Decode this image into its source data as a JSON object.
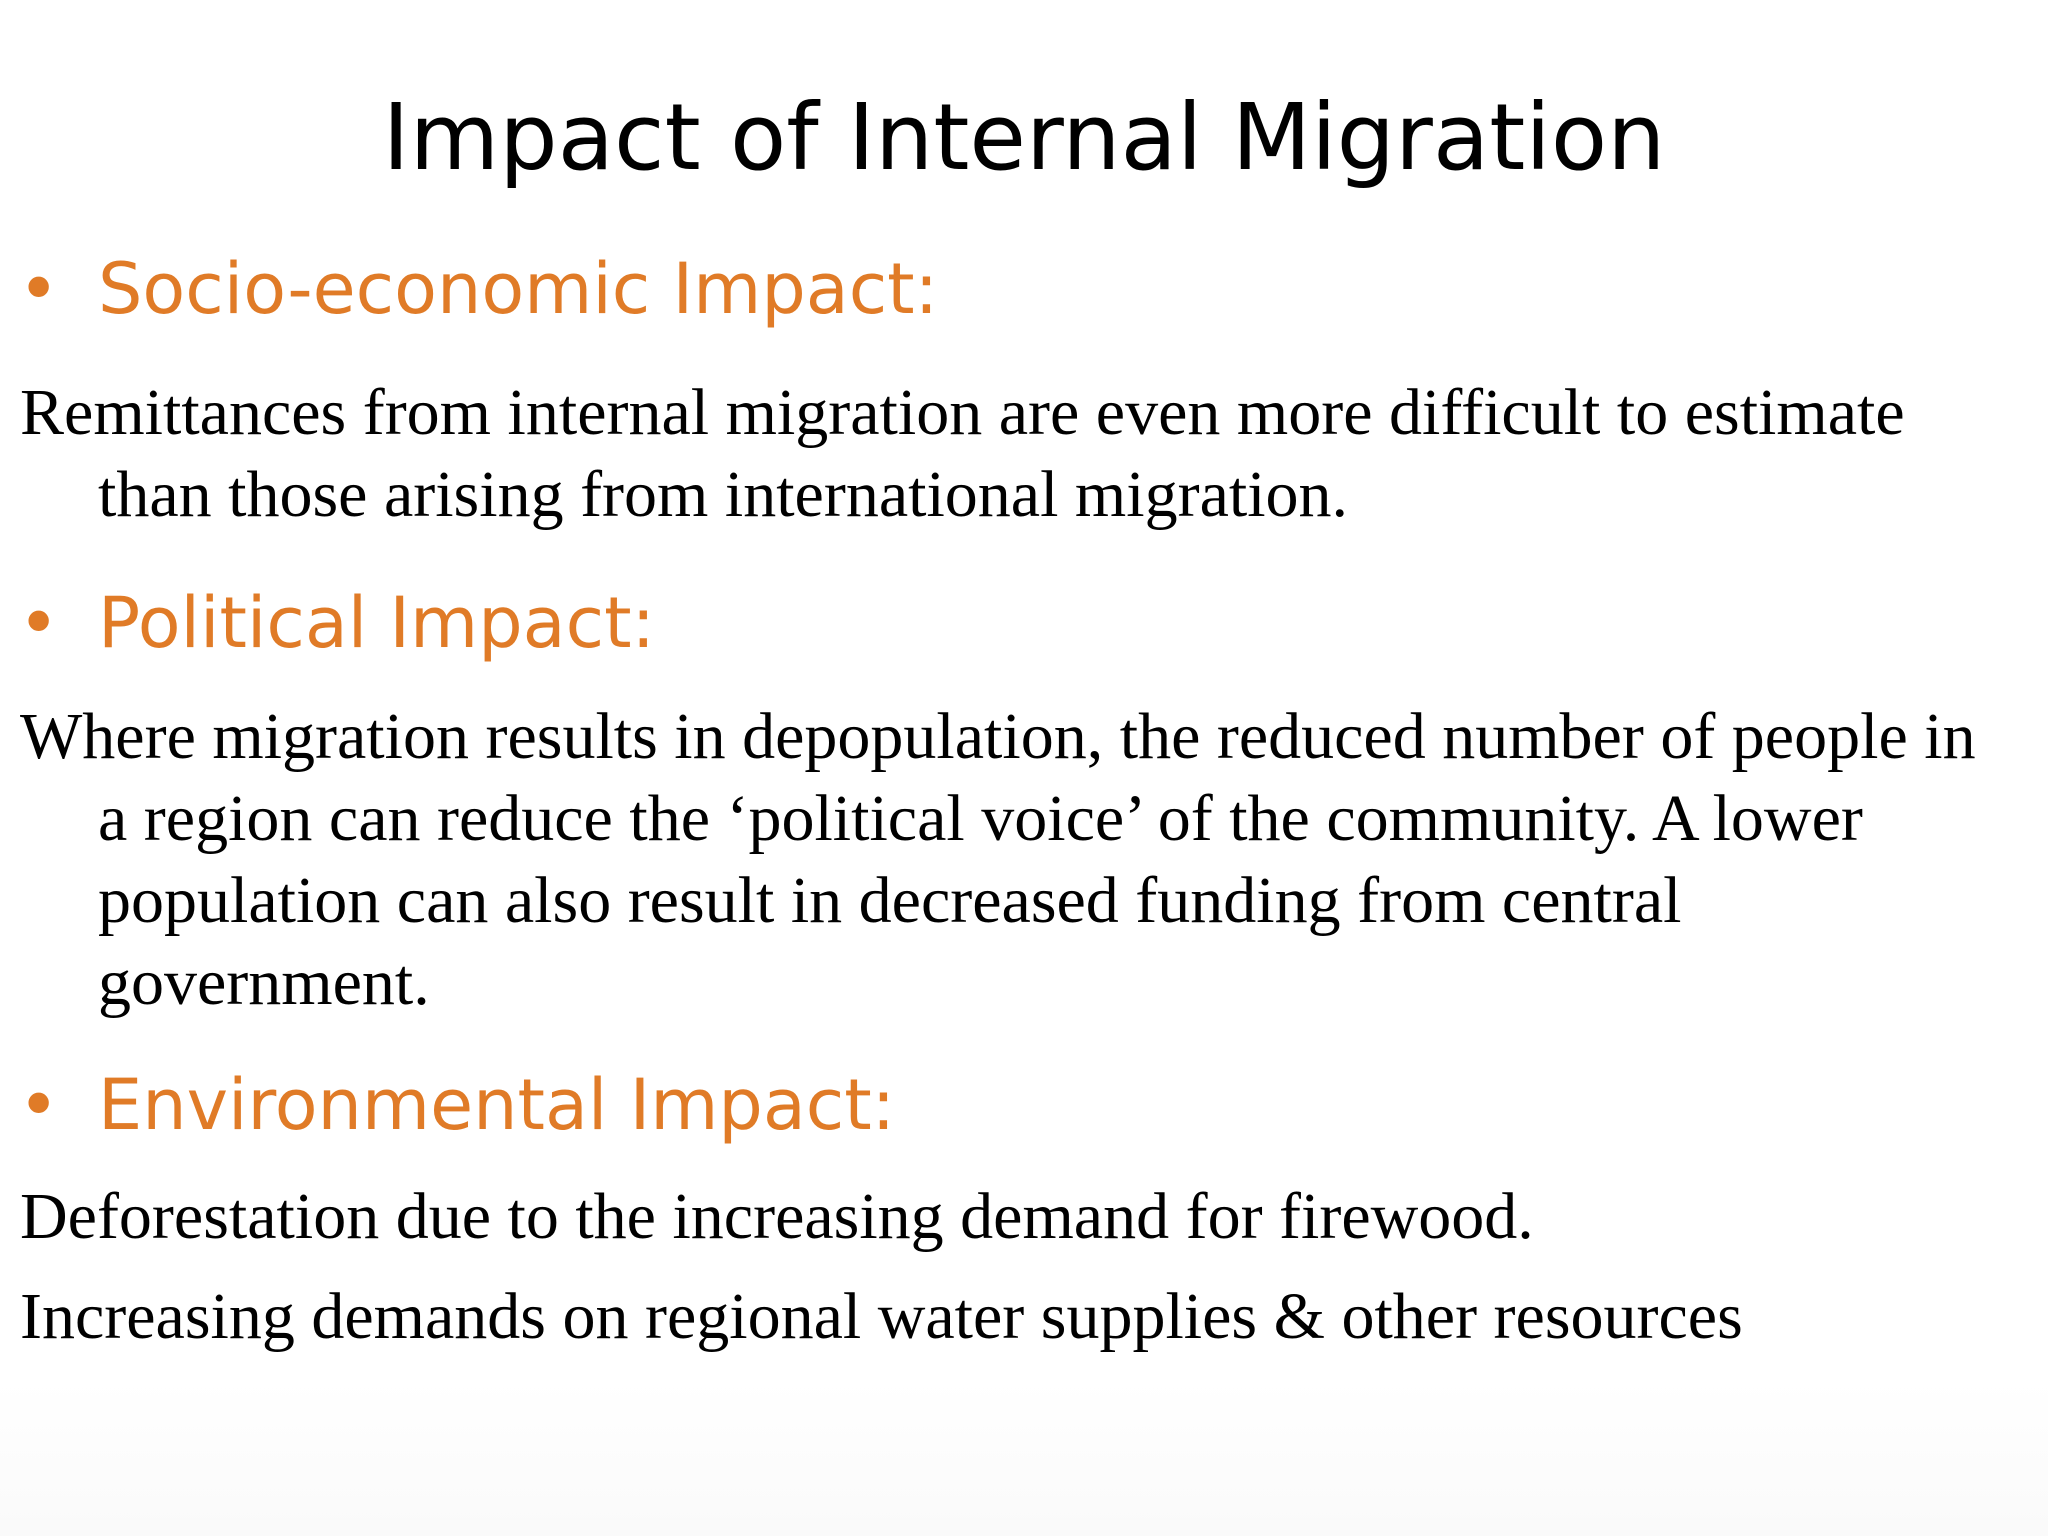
{
  "slide": {
    "title": "Impact of Internal Migration",
    "sections": [
      {
        "heading": "Socio-economic Impact:",
        "paragraphs": [
          "Remittances from internal migration are even more difficult to estimate than those arising from international migration."
        ]
      },
      {
        "heading": "Political Impact:",
        "paragraphs": [
          "Where migration results in depopulation, the reduced number of people in a region can reduce the ‘political voice’ of the community. A lower population can also result in decreased funding from central government."
        ]
      },
      {
        "heading": "Environmental Impact:",
        "paragraphs": [
          "Deforestation due to the increasing demand for firewood.",
          "Increasing demands on regional water supplies & other resources"
        ]
      }
    ],
    "colors": {
      "heading": "#E07B27",
      "text": "#000000",
      "background": "#FFFFFF"
    },
    "bullet_icon": "bullet-dot-icon"
  }
}
